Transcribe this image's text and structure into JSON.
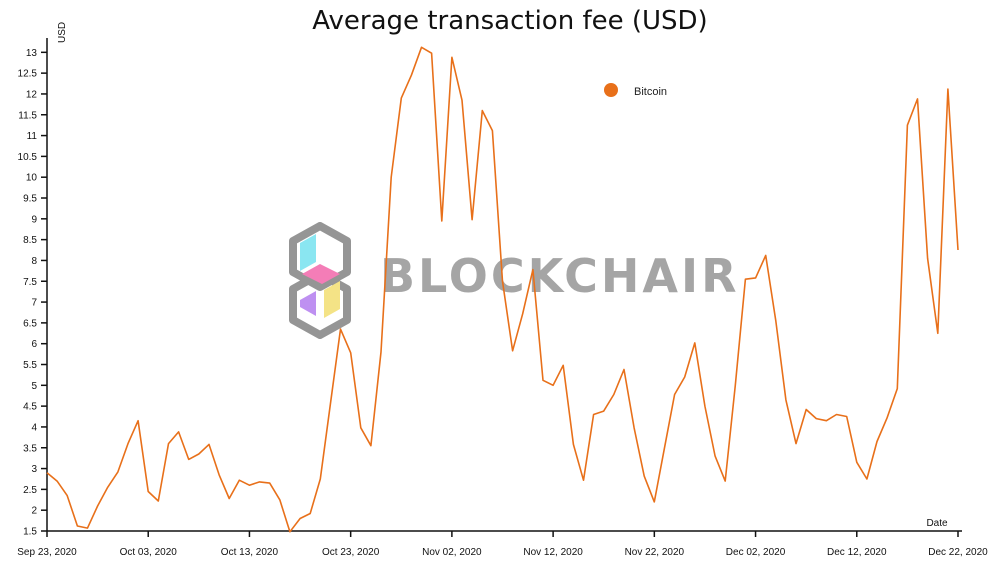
{
  "chart_data": {
    "type": "line",
    "title": "Average transaction fee (USD)",
    "ylabel": "USD",
    "xlabel": "Date",
    "ylim": [
      1.5,
      13.2
    ],
    "y_ticks": [
      "1.5",
      "2",
      "2.5",
      "3",
      "3.5",
      "4",
      "4.5",
      "5",
      "5.5",
      "6",
      "6.5",
      "7",
      "7.5",
      "8",
      "8.5",
      "9",
      "9.5",
      "10",
      "10.5",
      "11",
      "11.5",
      "12",
      "12.5",
      "13"
    ],
    "x_ticks": [
      "Sep 23, 2020",
      "Oct 03, 2020",
      "Oct 13, 2020",
      "Oct 23, 2020",
      "Nov 02, 2020",
      "Nov 12, 2020",
      "Nov 22, 2020",
      "Dec 02, 2020",
      "Dec 12, 2020",
      "Dec 22, 2020"
    ],
    "legend": "top-right",
    "grid": false,
    "series": [
      {
        "name": "Bitcoin",
        "color": "#e8701a",
        "x": [
          "2020-09-23",
          "2020-09-24",
          "2020-09-25",
          "2020-09-26",
          "2020-09-27",
          "2020-09-28",
          "2020-09-29",
          "2020-09-30",
          "2020-10-01",
          "2020-10-02",
          "2020-10-03",
          "2020-10-04",
          "2020-10-05",
          "2020-10-06",
          "2020-10-07",
          "2020-10-08",
          "2020-10-09",
          "2020-10-10",
          "2020-10-11",
          "2020-10-12",
          "2020-10-13",
          "2020-10-14",
          "2020-10-15",
          "2020-10-16",
          "2020-10-17",
          "2020-10-18",
          "2020-10-19",
          "2020-10-20",
          "2020-10-21",
          "2020-10-22",
          "2020-10-23",
          "2020-10-24",
          "2020-10-25",
          "2020-10-26",
          "2020-10-27",
          "2020-10-28",
          "2020-10-29",
          "2020-10-30",
          "2020-10-31",
          "2020-11-01",
          "2020-11-02",
          "2020-11-03",
          "2020-11-04",
          "2020-11-05",
          "2020-11-06",
          "2020-11-07",
          "2020-11-08",
          "2020-11-09",
          "2020-11-10",
          "2020-11-11",
          "2020-11-12",
          "2020-11-13",
          "2020-11-14",
          "2020-11-15",
          "2020-11-16",
          "2020-11-17",
          "2020-11-18",
          "2020-11-19",
          "2020-11-20",
          "2020-11-21",
          "2020-11-22",
          "2020-11-23",
          "2020-11-24",
          "2020-11-25",
          "2020-11-26",
          "2020-11-27",
          "2020-11-28",
          "2020-11-29",
          "2020-11-30",
          "2020-12-01",
          "2020-12-02",
          "2020-12-03",
          "2020-12-04",
          "2020-12-05",
          "2020-12-06",
          "2020-12-07",
          "2020-12-08",
          "2020-12-09",
          "2020-12-10",
          "2020-12-11",
          "2020-12-12",
          "2020-12-13",
          "2020-12-14",
          "2020-12-15",
          "2020-12-16",
          "2020-12-17",
          "2020-12-18",
          "2020-12-19",
          "2020-12-20",
          "2020-12-21",
          "2020-12-22"
        ],
        "values": [
          2.9,
          2.7,
          2.35,
          1.62,
          1.57,
          2.1,
          2.55,
          2.92,
          3.6,
          4.15,
          2.45,
          2.22,
          3.6,
          3.88,
          3.22,
          3.35,
          3.58,
          2.85,
          2.28,
          2.72,
          2.6,
          2.68,
          2.65,
          2.25,
          1.48,
          1.8,
          1.92,
          2.75,
          4.55,
          6.35,
          5.78,
          3.98,
          3.55,
          5.8,
          10.0,
          11.9,
          12.45,
          13.12,
          12.98,
          8.95,
          12.88,
          11.85,
          8.98,
          11.6,
          11.12,
          7.5,
          5.83,
          6.72,
          7.78,
          5.12,
          5.0,
          5.48,
          3.58,
          2.72,
          4.3,
          4.38,
          4.78,
          5.38,
          3.98,
          2.82,
          2.2,
          3.5,
          4.78,
          5.2,
          6.02,
          4.5,
          3.3,
          2.7,
          5.0,
          7.55,
          7.58,
          8.12,
          6.55,
          4.65,
          3.6,
          4.42,
          4.2,
          4.15,
          4.3,
          4.25,
          3.15,
          2.75,
          3.65,
          4.22,
          4.92,
          11.25,
          11.88,
          8.05,
          6.25,
          12.12,
          8.25
        ]
      }
    ]
  }
}
